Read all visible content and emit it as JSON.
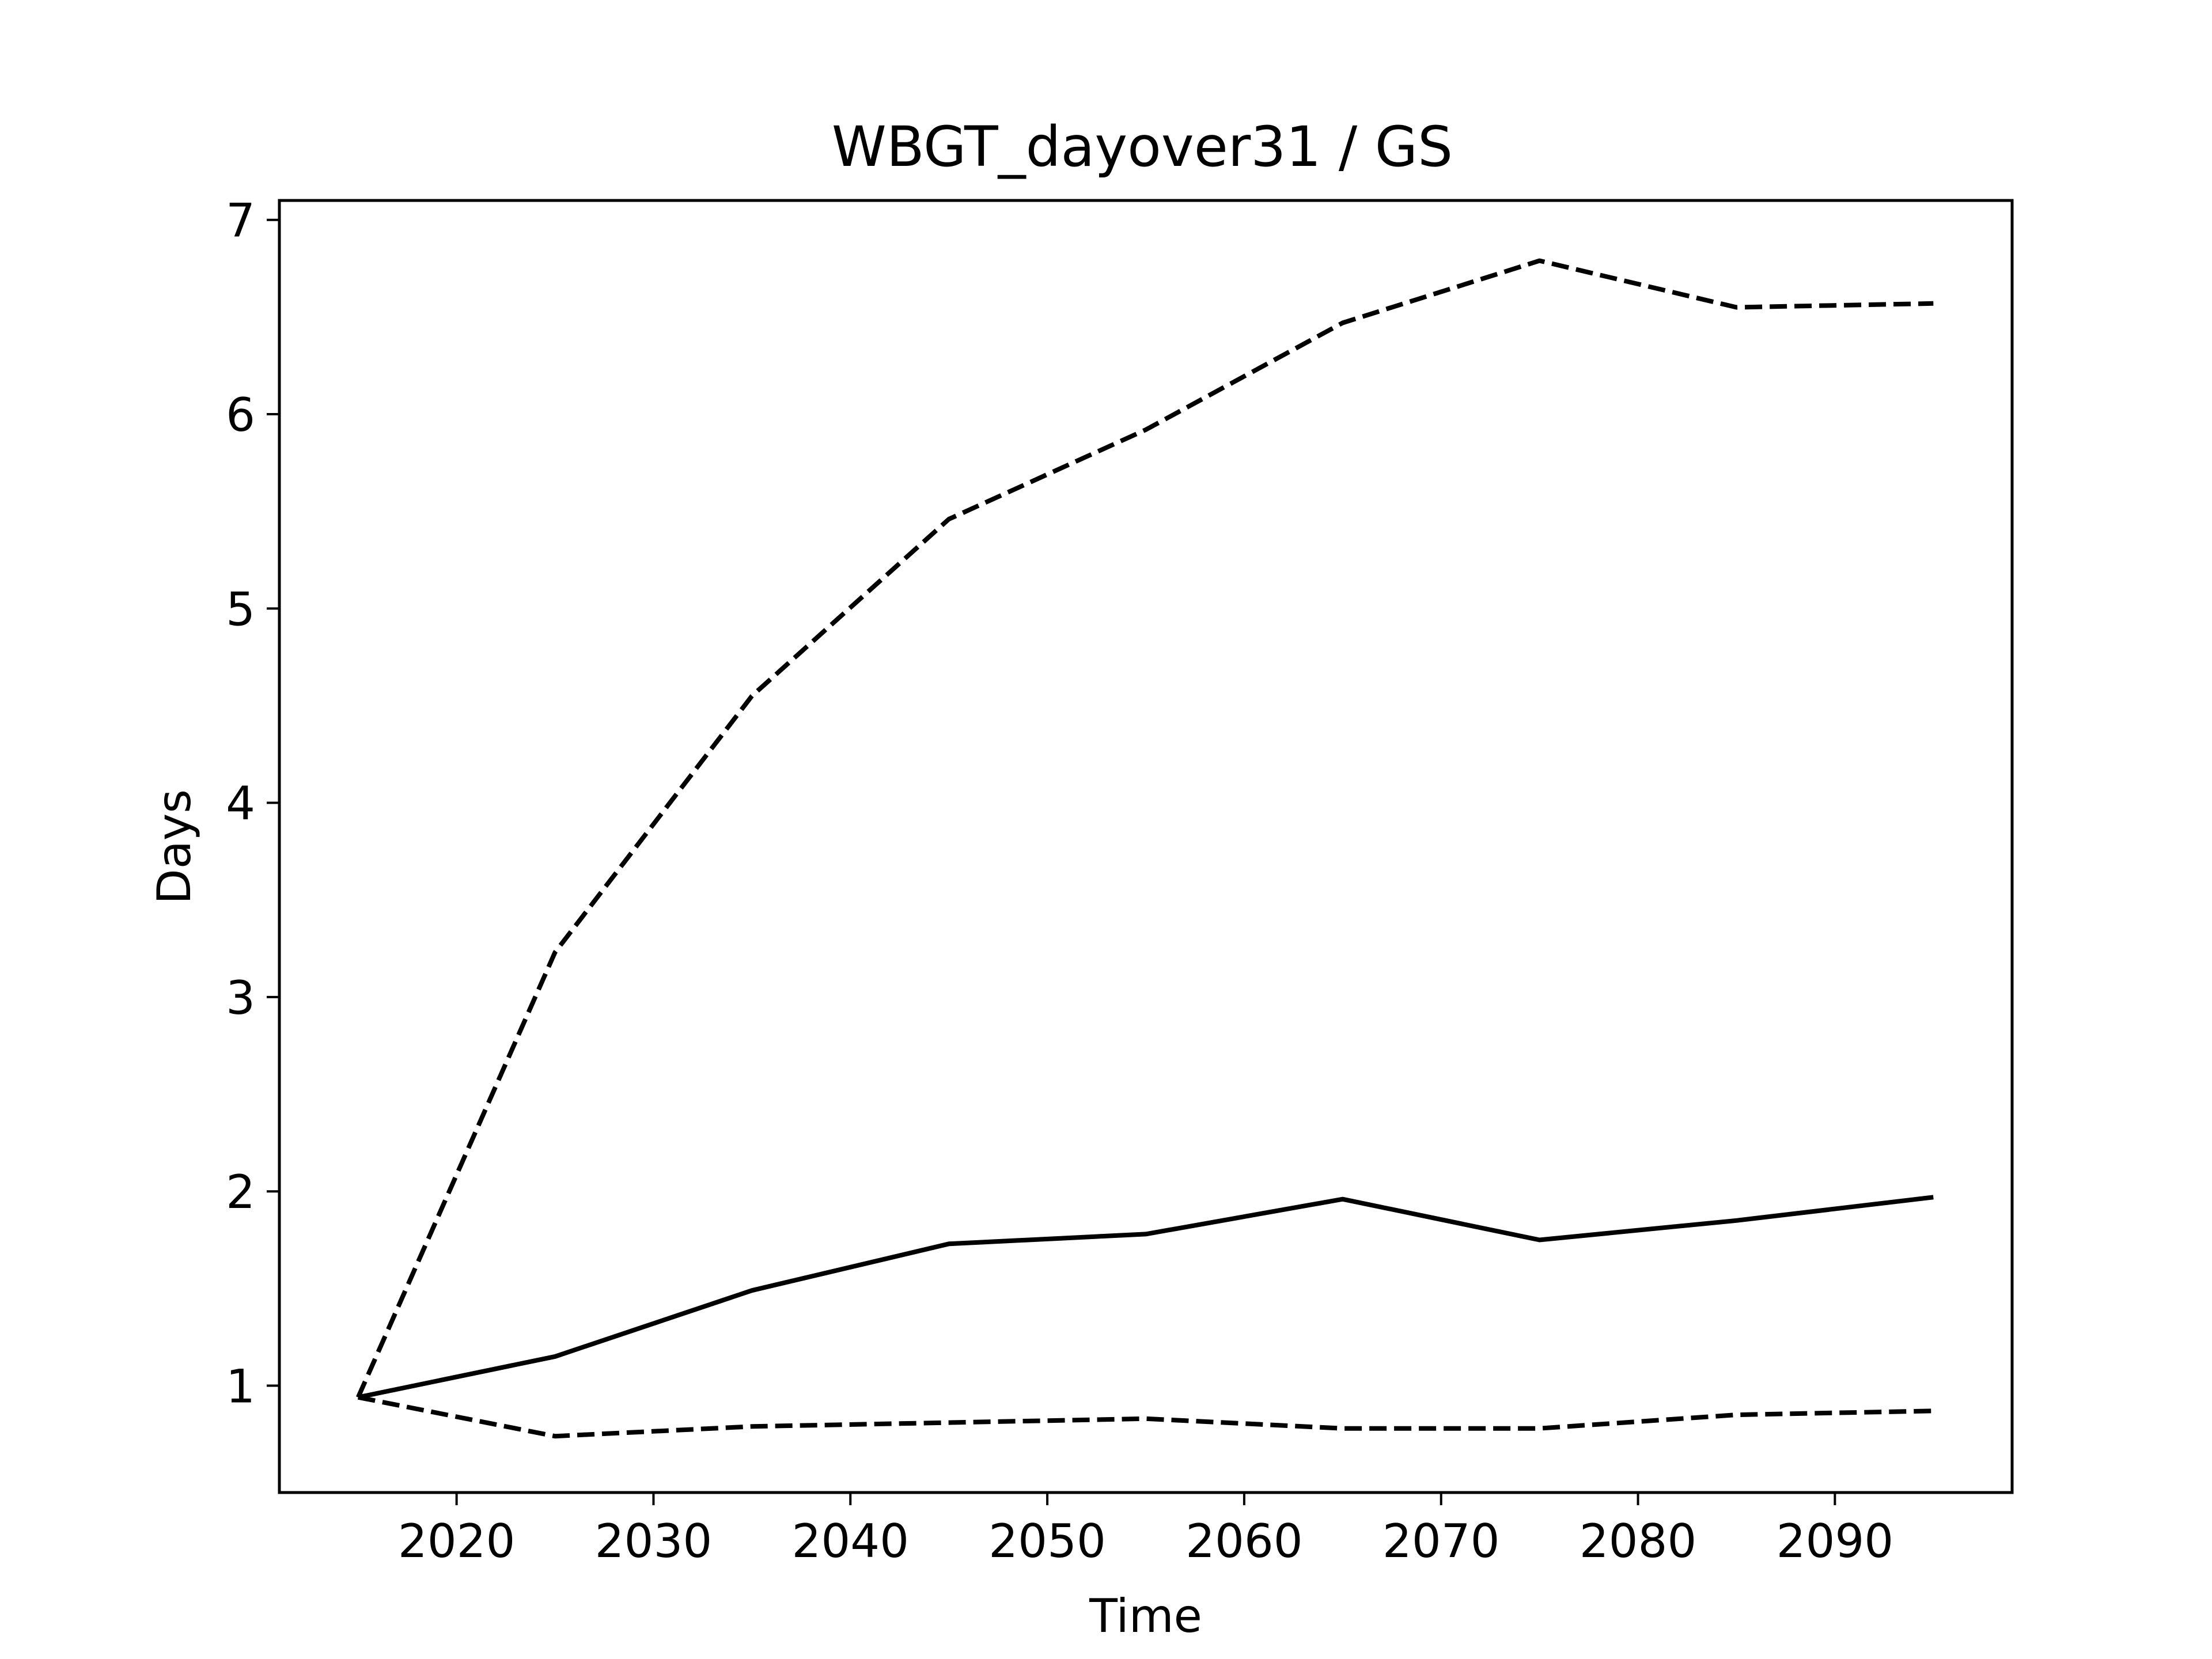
{
  "chart_data": {
    "type": "line",
    "title": "WBGT_dayover31 / GS",
    "xlabel": "Time",
    "ylabel": "Days",
    "xlim": [
      2011,
      2099
    ],
    "ylim": [
      0.45,
      7.1
    ],
    "xticks": [
      2020,
      2030,
      2040,
      2050,
      2060,
      2070,
      2080,
      2090
    ],
    "yticks": [
      1,
      2,
      3,
      4,
      5,
      6,
      7
    ],
    "grid": false,
    "legend": false,
    "x": [
      2015,
      2025,
      2035,
      2045,
      2055,
      2065,
      2075,
      2085,
      2095
    ],
    "series": [
      {
        "style": "solid",
        "color": "#000000",
        "values": [
          0.94,
          1.15,
          1.49,
          1.73,
          1.78,
          1.96,
          1.75,
          1.85,
          1.97
        ]
      },
      {
        "style": "dashed",
        "color": "#000000",
        "values": [
          0.94,
          3.23,
          4.55,
          5.46,
          5.92,
          6.47,
          6.79,
          6.55,
          6.57
        ]
      },
      {
        "style": "dashed",
        "color": "#000000",
        "values": [
          0.94,
          0.74,
          0.79,
          0.81,
          0.83,
          0.78,
          0.78,
          0.85,
          0.87
        ]
      }
    ]
  }
}
